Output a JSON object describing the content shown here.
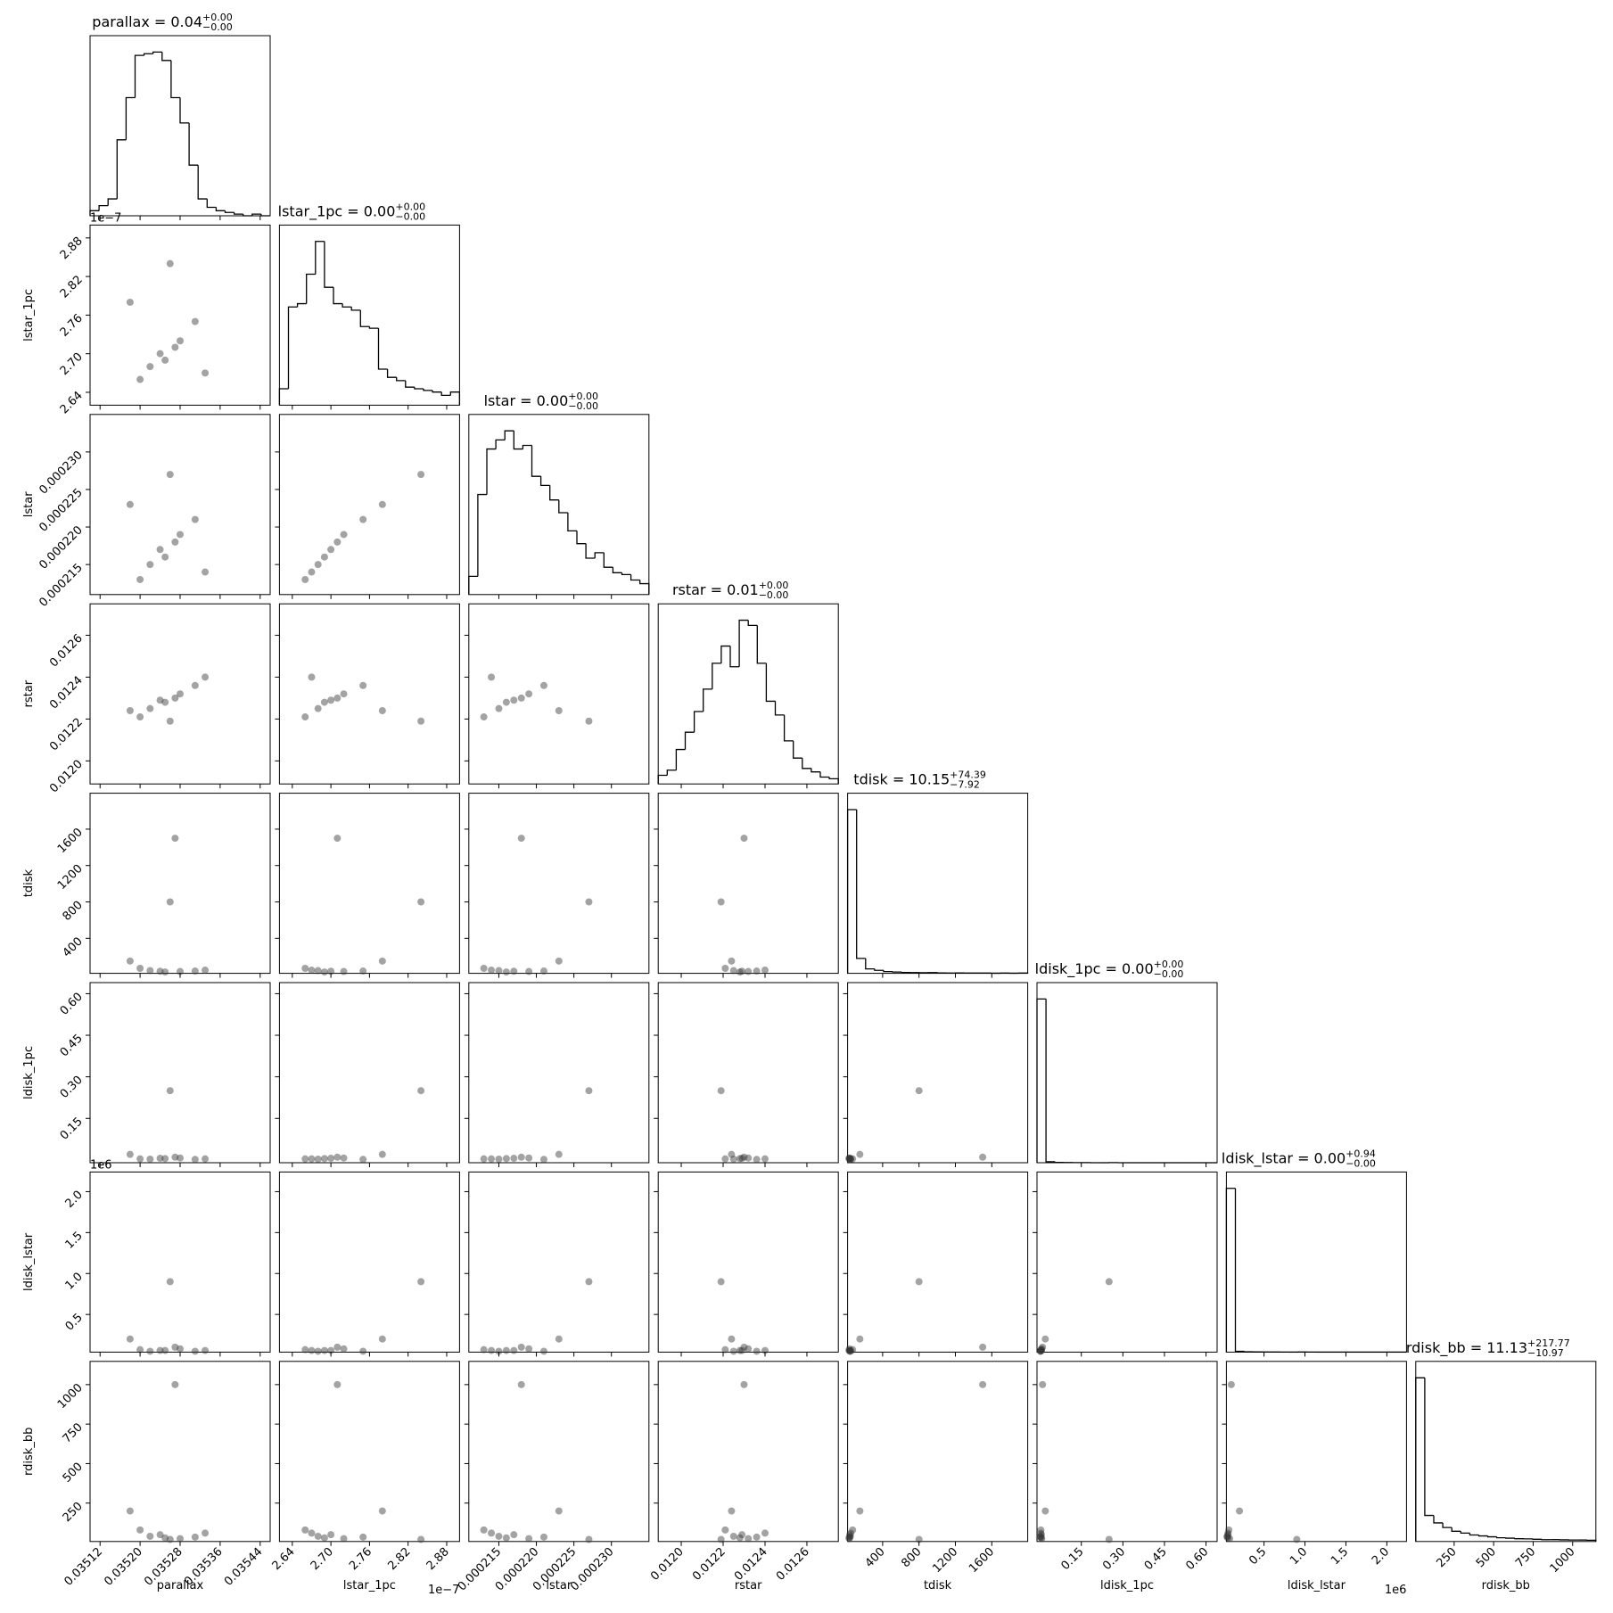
{
  "axes": [
    {
      "label": "parallax",
      "lim": [
        0.0351,
        0.03546
      ],
      "ticks": [
        0.03512,
        {
          "value": 0.0352,
          "label": "0.03520"
        },
        0.03528,
        0.03536,
        0.03544
      ],
      "samples": [
        0.03525,
        0.03522,
        0.03528,
        0.0352,
        0.03531,
        0.03524,
        0.03518,
        0.03533,
        0.03526,
        0.03527
      ]
    },
    {
      "label": "lstar_1pc",
      "lim": [
        2.62,
        2.9
      ],
      "ticks": [
        2.64,
        {
          "value": 2.7,
          "label": "2.70"
        },
        2.76,
        2.82,
        2.88
      ],
      "offset": "1e−7",
      "samples": [
        2.69,
        2.68,
        2.72,
        2.66,
        2.75,
        2.7,
        2.78,
        2.67,
        2.84,
        2.71
      ]
    },
    {
      "label": "lstar",
      "lim": [
        0.000211,
        0.000235
      ],
      "ticks": [
        0.000215,
        {
          "value": 0.00022,
          "label": "0.000220"
        },
        0.000225,
        {
          "value": 0.00023,
          "label": "0.000230"
        }
      ],
      "samples": [
        0.000216,
        0.000215,
        0.000219,
        0.000213,
        0.000221,
        0.000217,
        0.000223,
        0.000214,
        0.000227,
        0.000218
      ]
    },
    {
      "label": "rstar",
      "lim": [
        0.01189,
        0.01275
      ],
      "ticks": [
        {
          "value": 0.012,
          "label": "0.0120"
        },
        0.0122,
        0.0124,
        0.0126
      ],
      "samples": [
        0.01228,
        0.01225,
        0.01232,
        0.01221,
        0.01236,
        0.01229,
        0.01224,
        0.0124,
        0.01219,
        0.0123
      ]
    },
    {
      "label": "tdisk",
      "lim": [
        15,
        1995
      ],
      "ticks": [
        400,
        800,
        1200,
        1600
      ],
      "samples": [
        30,
        45,
        35,
        70,
        40,
        38,
        150,
        50,
        800,
        1500
      ]
    },
    {
      "label": "ldisk_1pc",
      "lim": [
        -0.01,
        0.64
      ],
      "ticks": [
        0.15,
        {
          "value": 0.3,
          "label": "0.30"
        },
        0.45,
        {
          "value": 0.6,
          "label": "0.60"
        }
      ],
      "samples": [
        0.005,
        0.003,
        0.007,
        0.004,
        0.002,
        0.006,
        0.02,
        0.004,
        0.25,
        0.01
      ]
    },
    {
      "label": "ldisk_lstar",
      "lim": [
        0.04,
        2.24
      ],
      "ticks": [
        0.5,
        {
          "value": 1,
          "label": "1.0"
        },
        1.5,
        {
          "value": 2,
          "label": "2.0"
        }
      ],
      "offset": "1e6",
      "samples": [
        0.06,
        0.05,
        0.08,
        0.07,
        0.05,
        0.06,
        0.2,
        0.06,
        0.9,
        0.1
      ]
    },
    {
      "label": "rdisk_bb",
      "lim": [
        7,
        1147
      ],
      "ticks": [
        250,
        500,
        750,
        1000
      ],
      "samples": [
        30,
        40,
        25,
        80,
        35,
        50,
        200,
        60,
        20,
        1000
      ]
    }
  ],
  "chart_data": [
    {
      "type": "histogram",
      "title": "parallax = 0.04",
      "title_plus": "+0.00",
      "title_minus": "−0.00",
      "bins": [
        0.0351,
        0.035118,
        0.035136,
        0.035154,
        0.035172,
        0.03519,
        0.035208,
        0.035226,
        0.035244,
        0.035262,
        0.03528,
        0.035298,
        0.035316,
        0.035334,
        0.035352,
        0.03537,
        0.035388,
        0.035406,
        0.035424,
        0.035442,
        0.03546
      ],
      "counts": [
        3,
        6,
        10,
        45,
        70,
        95,
        96,
        97,
        92,
        70,
        55,
        30,
        10,
        5,
        3,
        2,
        1,
        0,
        1,
        0
      ]
    },
    {
      "type": "scatter"
    },
    {
      "type": "histogram",
      "title": "lstar_1pc = 0.00",
      "title_plus": "+0.00",
      "title_minus": "−0.00",
      "bins": [
        2.62,
        2.634,
        2.648,
        2.662,
        2.676,
        2.69,
        2.704,
        2.718,
        2.732,
        2.746,
        2.76,
        2.774,
        2.788,
        2.802,
        2.816,
        2.83,
        2.844,
        2.858,
        2.872,
        2.886,
        2.9
      ],
      "counts": [
        10,
        60,
        62,
        80,
        100,
        72,
        62,
        60,
        58,
        48,
        47,
        22,
        17,
        15,
        11,
        10,
        9,
        8,
        6,
        8
      ]
    },
    {
      "type": "scatter"
    },
    {
      "type": "scatter"
    },
    {
      "type": "histogram",
      "title": "lstar = 0.00",
      "title_plus": "+0.00",
      "title_minus": "−0.00",
      "bins": [
        0.000211,
        0.0002122,
        0.0002134,
        0.0002146,
        0.0002158,
        0.000217,
        0.0002182,
        0.0002194,
        0.0002206,
        0.0002218,
        0.000223,
        0.0002242,
        0.0002254,
        0.0002266,
        0.0002278,
        0.000229,
        0.0002302,
        0.0002314,
        0.0002326,
        0.0002338,
        0.000235
      ],
      "counts": [
        10,
        55,
        80,
        85,
        90,
        80,
        82,
        65,
        60,
        52,
        45,
        35,
        28,
        20,
        23,
        15,
        12,
        11,
        8,
        6
      ]
    },
    {
      "type": "scatter"
    },
    {
      "type": "scatter"
    },
    {
      "type": "scatter"
    },
    {
      "type": "histogram",
      "title": "rstar = 0.01",
      "title_plus": "+0.00",
      "title_minus": "−0.00",
      "bins": [
        0.01189,
        0.011933,
        0.011976,
        0.012019,
        0.012062,
        0.012105,
        0.012148,
        0.012191,
        0.012234,
        0.012277,
        0.01232,
        0.012363,
        0.012406,
        0.012449,
        0.012492,
        0.012535,
        0.012578,
        0.012621,
        0.012664,
        0.012707,
        0.01275
      ],
      "counts": [
        5,
        8,
        20,
        30,
        42,
        55,
        70,
        80,
        68,
        95,
        92,
        70,
        48,
        40,
        25,
        15,
        9,
        7,
        4,
        3
      ]
    },
    {
      "type": "scatter"
    },
    {
      "type": "scatter"
    },
    {
      "type": "scatter"
    },
    {
      "type": "scatter"
    },
    {
      "type": "histogram",
      "title": "tdisk = 10.15",
      "title_plus": "+74.39",
      "title_minus": "−7.92",
      "bins": [
        15,
        114,
        213,
        312,
        411,
        510,
        609,
        708,
        807,
        906,
        1005,
        1104,
        1203,
        1302,
        1401,
        1500,
        1599,
        1698,
        1797,
        1896,
        1995
      ],
      "counts": [
        1100,
        100,
        30,
        20,
        12,
        9,
        6,
        5,
        4,
        5,
        3,
        2,
        3,
        2,
        2,
        2,
        1,
        2,
        1,
        2
      ]
    },
    {
      "type": "scatter"
    },
    {
      "type": "scatter"
    },
    {
      "type": "scatter"
    },
    {
      "type": "scatter"
    },
    {
      "type": "scatter"
    },
    {
      "type": "histogram",
      "title": "ldisk_1pc = 0.00",
      "title_plus": "+0.00",
      "title_minus": "−0.00",
      "bins": [
        -0.01,
        0.0225,
        0.055,
        0.0875,
        0.12,
        0.1525,
        0.185,
        0.2175,
        0.25,
        0.2825,
        0.315,
        0.3475,
        0.38,
        0.4125,
        0.445,
        0.4775,
        0.51,
        0.5425,
        0.575,
        0.6075,
        0.64
      ],
      "counts": [
        1600,
        10,
        3,
        2,
        1,
        1,
        0,
        0,
        1,
        0,
        0,
        0,
        0,
        0,
        0,
        0,
        0,
        0,
        0,
        0
      ]
    },
    {
      "type": "scatter"
    },
    {
      "type": "scatter"
    },
    {
      "type": "scatter"
    },
    {
      "type": "scatter"
    },
    {
      "type": "scatter"
    },
    {
      "type": "scatter"
    },
    {
      "type": "histogram",
      "title": "ldisk_lstar = 0.00",
      "title_plus": "+0.94",
      "title_minus": "−0.00",
      "bins": [
        0.04,
        0.15,
        0.26,
        0.37,
        0.48,
        0.59,
        0.7,
        0.81,
        0.92,
        1.03,
        1.14,
        1.25,
        1.36,
        1.47,
        1.58,
        1.69,
        1.8,
        1.91,
        2.02,
        2.13,
        2.24
      ],
      "counts": [
        1600,
        8,
        3,
        2,
        1,
        1,
        0,
        0,
        1,
        0,
        0,
        0,
        0,
        0,
        0,
        0,
        0,
        0,
        0,
        0
      ]
    },
    {
      "type": "scatter"
    },
    {
      "type": "scatter"
    },
    {
      "type": "scatter"
    },
    {
      "type": "scatter"
    },
    {
      "type": "scatter"
    },
    {
      "type": "scatter"
    },
    {
      "type": "scatter"
    },
    {
      "type": "histogram",
      "title": "rdisk_bb = 11.13",
      "title_plus": "+217.77",
      "title_minus": "−10.97",
      "bins": [
        7,
        64,
        121,
        178,
        235,
        292,
        349,
        406,
        463,
        520,
        577,
        634,
        691,
        748,
        805,
        862,
        919,
        976,
        1033,
        1090,
        1147
      ],
      "counts": [
        880,
        140,
        100,
        75,
        55,
        45,
        35,
        30,
        25,
        20,
        18,
        15,
        14,
        12,
        10,
        10,
        9,
        8,
        8,
        7
      ]
    }
  ]
}
